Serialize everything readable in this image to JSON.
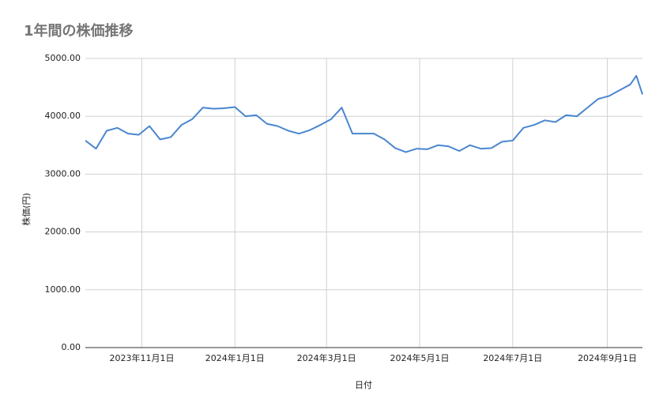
{
  "chart_data": {
    "type": "line",
    "title": "1年間の株価推移",
    "x_label": "日付",
    "y_label": "株価(円)",
    "x": [
      "2023-09-25",
      "2023-10-02",
      "2023-10-09",
      "2023-10-16",
      "2023-10-23",
      "2023-10-30",
      "2023-11-06",
      "2023-11-13",
      "2023-11-20",
      "2023-11-27",
      "2023-12-04",
      "2023-12-11",
      "2023-12-18",
      "2023-12-25",
      "2024-01-01",
      "2024-01-08",
      "2024-01-15",
      "2024-01-22",
      "2024-01-29",
      "2024-02-05",
      "2024-02-12",
      "2024-02-19",
      "2024-02-26",
      "2024-03-04",
      "2024-03-11",
      "2024-03-18",
      "2024-03-25",
      "2024-04-01",
      "2024-04-08",
      "2024-04-15",
      "2024-04-22",
      "2024-04-29",
      "2024-05-06",
      "2024-05-13",
      "2024-05-20",
      "2024-05-27",
      "2024-06-03",
      "2024-06-10",
      "2024-06-17",
      "2024-06-24",
      "2024-07-01",
      "2024-07-08",
      "2024-07-15",
      "2024-07-22",
      "2024-07-29",
      "2024-08-05",
      "2024-08-12",
      "2024-08-19",
      "2024-08-26",
      "2024-09-02",
      "2024-09-09",
      "2024-09-16",
      "2024-09-20",
      "2024-09-24"
    ],
    "series": [
      {
        "name": "株価",
        "color": "#4a86d0",
        "values": [
          3580,
          3440,
          3750,
          3800,
          3700,
          3680,
          3830,
          3600,
          3640,
          3850,
          3950,
          4150,
          4130,
          4140,
          4160,
          4000,
          4020,
          3870,
          3830,
          3750,
          3700,
          3760,
          3850,
          3950,
          4150,
          3700,
          3700,
          3700,
          3600,
          3450,
          3380,
          3440,
          3430,
          3500,
          3480,
          3400,
          3500,
          3440,
          3450,
          3560,
          3580,
          3800,
          3850,
          3930,
          3900,
          4020,
          4000,
          4150,
          4300,
          4350,
          4450,
          4550,
          4700,
          4380
        ]
      }
    ],
    "xlim": [
      "2023-09-25",
      "2024-09-24"
    ],
    "xticks": [
      {
        "value": "2023-11-01",
        "label": "2023年11月1日"
      },
      {
        "value": "2024-01-01",
        "label": "2024年1月1日"
      },
      {
        "value": "2024-03-01",
        "label": "2024年3月1日"
      },
      {
        "value": "2024-05-01",
        "label": "2024年5月1日"
      },
      {
        "value": "2024-07-01",
        "label": "2024年7月1日"
      },
      {
        "value": "2024-09-01",
        "label": "2024年9月1日"
      }
    ],
    "ylim": [
      0,
      5000
    ],
    "yticks": [
      {
        "value": 0,
        "label": "0.00"
      },
      {
        "value": 1000,
        "label": "1000.00"
      },
      {
        "value": 2000,
        "label": "2000.00"
      },
      {
        "value": 3000,
        "label": "3000.00"
      },
      {
        "value": 4000,
        "label": "4000.00"
      },
      {
        "value": 5000,
        "label": "5000.00"
      }
    ],
    "grid": true
  }
}
